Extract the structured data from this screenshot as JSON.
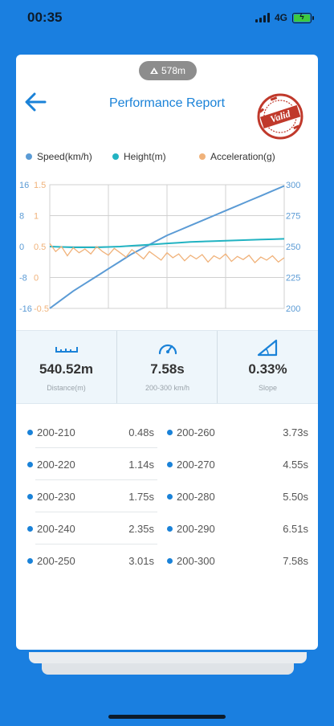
{
  "status": {
    "time": "00:35",
    "network": "4G"
  },
  "altitude": "578m",
  "header": {
    "title": "Performance Report",
    "stamp": "Valid"
  },
  "legend": [
    {
      "label": "Speed(km/h)",
      "color": "#5b9bd5"
    },
    {
      "label": "Height(m)",
      "color": "#22b3c2"
    },
    {
      "label": "Acceleration(g)",
      "color": "#f0b27a"
    }
  ],
  "chart_data": {
    "type": "line",
    "axes": {
      "left_outer": {
        "ticks": [
          "16",
          "8",
          "0",
          "-8",
          "-16"
        ],
        "range": [
          -16,
          16
        ],
        "color": "#5b9bd5"
      },
      "left_inner": {
        "ticks": [
          "1.5",
          "1",
          "0.5",
          "0",
          "-0.5"
        ],
        "range": [
          -0.5,
          1.5
        ],
        "color": "#f0b27a"
      },
      "right": {
        "ticks": [
          "300",
          "275",
          "250",
          "225",
          "200"
        ],
        "range": [
          200,
          300
        ],
        "color": "#5b9bd5"
      }
    },
    "grid": true,
    "series": [
      {
        "name": "Speed(km/h)",
        "axis": "right",
        "color": "#5b9bd5",
        "values": [
          200,
          207,
          214,
          220,
          226,
          232,
          238,
          244,
          249,
          254,
          259,
          263,
          267,
          271,
          275,
          279,
          283,
          287,
          291,
          295,
          299
        ]
      },
      {
        "name": "Height(m)",
        "axis": "left_outer",
        "color": "#22b3c2",
        "values": [
          0,
          -0.1,
          -0.2,
          -0.2,
          -0.2,
          -0.1,
          0,
          0.2,
          0.4,
          0.6,
          0.8,
          1.0,
          1.2,
          1.3,
          1.4,
          1.5,
          1.6,
          1.7,
          1.8,
          1.9,
          2.0
        ]
      },
      {
        "name": "Acceleration(g)",
        "axis": "left_inner",
        "color": "#f0b27a",
        "values": [
          0.55,
          0.42,
          0.5,
          0.35,
          0.48,
          0.4,
          0.46,
          0.38,
          0.5,
          0.42,
          0.36,
          0.47,
          0.4,
          0.33,
          0.45,
          0.38,
          0.3,
          0.42,
          0.35,
          0.28,
          0.4,
          0.32,
          0.38,
          0.27,
          0.36,
          0.3,
          0.37,
          0.25,
          0.35,
          0.3,
          0.38,
          0.26,
          0.34,
          0.29,
          0.36,
          0.24,
          0.33,
          0.28,
          0.35,
          0.25,
          0.32
        ]
      }
    ]
  },
  "stats": [
    {
      "value": "540.52m",
      "label": "Distance(m)",
      "icon": "ruler-icon"
    },
    {
      "value": "7.58s",
      "label": "200-300 km/h",
      "icon": "speedometer-icon"
    },
    {
      "value": "0.33%",
      "label": "Slope",
      "icon": "slope-icon"
    }
  ],
  "splits": [
    {
      "range": "200-210",
      "time": "0.48s"
    },
    {
      "range": "200-260",
      "time": "3.73s"
    },
    {
      "range": "200-220",
      "time": "1.14s"
    },
    {
      "range": "200-270",
      "time": "4.55s"
    },
    {
      "range": "200-230",
      "time": "1.75s"
    },
    {
      "range": "200-280",
      "time": "5.50s"
    },
    {
      "range": "200-240",
      "time": "2.35s"
    },
    {
      "range": "200-290",
      "time": "6.51s"
    },
    {
      "range": "200-250",
      "time": "3.01s"
    },
    {
      "range": "200-300",
      "time": "7.58s"
    }
  ]
}
